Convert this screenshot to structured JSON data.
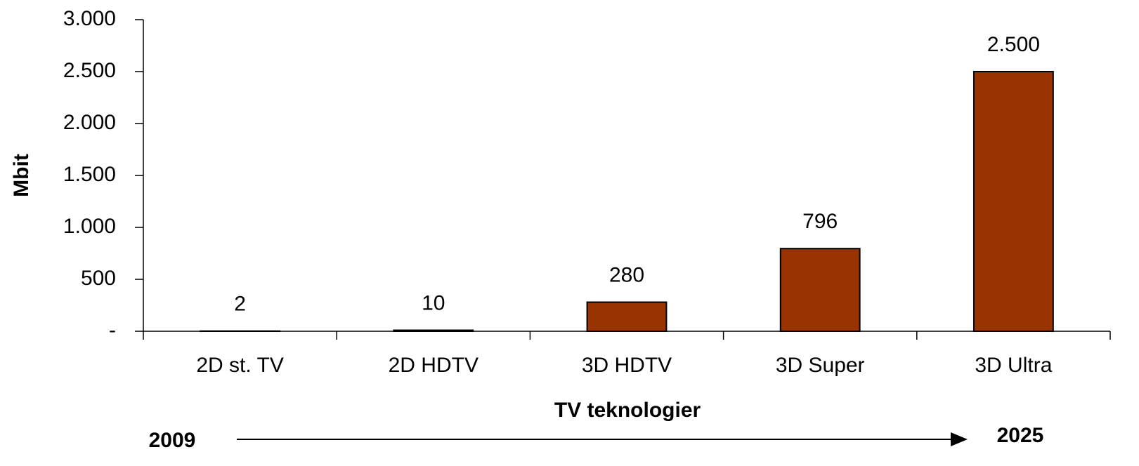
{
  "chart_data": {
    "type": "bar",
    "y_axis_label": "Mbit",
    "x_axis_label": "TV teknologier",
    "categories": [
      "2D st. TV",
      "2D HDTV",
      "3D HDTV",
      "3D Super",
      "3D Ultra"
    ],
    "values": [
      2,
      10,
      280,
      796,
      2500
    ],
    "value_labels": [
      "2",
      "10",
      "280",
      "796",
      "2.500"
    ],
    "color": "#993300",
    "ylim": [
      0,
      3000
    ],
    "yticks": [
      {
        "value": 0,
        "label": "-"
      },
      {
        "value": 500,
        "label": "500"
      },
      {
        "value": 1000,
        "label": "1.000"
      },
      {
        "value": 1500,
        "label": "1.500"
      },
      {
        "value": 2000,
        "label": "2.000"
      },
      {
        "value": 2500,
        "label": "2.500"
      },
      {
        "value": 3000,
        "label": "3.000"
      }
    ],
    "grid": false,
    "timeline": {
      "start": "2009",
      "end": "2025"
    }
  }
}
